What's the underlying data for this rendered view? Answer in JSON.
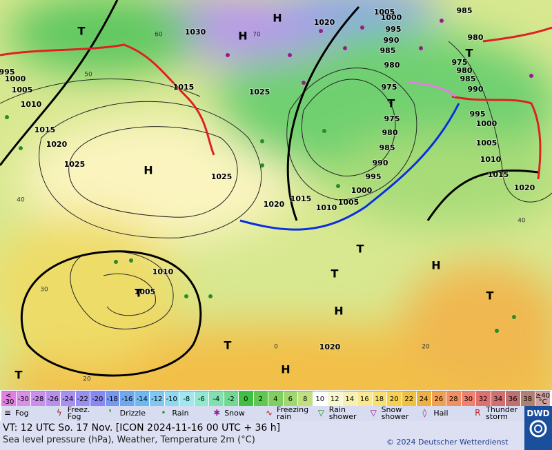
{
  "map": {
    "pressure_labels": [
      "1030",
      "1020",
      "1005",
      "1000",
      "995",
      "990",
      "985",
      "980",
      "975",
      "975",
      "980",
      "985",
      "990",
      "995",
      "1000",
      "1005",
      "1010",
      "1015",
      "1020",
      "1025",
      "1025",
      "1020",
      "1015",
      "1010",
      "1005",
      "1000",
      "995",
      "1015",
      "1025",
      "1010",
      "1005",
      "1020",
      "985",
      "980",
      "975",
      "980",
      "985",
      "990",
      "995",
      "1000",
      "1005",
      "1010",
      "1015",
      "1020"
    ],
    "centers": [
      "H",
      "H",
      "H",
      "H",
      "H",
      "H",
      "T",
      "T",
      "T",
      "T",
      "T",
      "T",
      "T",
      "T",
      "T"
    ],
    "temp_labels": [
      "60",
      "50",
      "70",
      "40",
      "30",
      "20",
      "0",
      "20",
      "40"
    ]
  },
  "color_scale": {
    "labels": [
      "<\n-30",
      "-30",
      "-28",
      "-26",
      "-24",
      "-22",
      "-20",
      "-18",
      "-16",
      "-14",
      "-12",
      "-10",
      "-8",
      "-6",
      "-4",
      "-2",
      "0",
      "2",
      "4",
      "6",
      "8",
      "10",
      "12",
      "14",
      "16",
      "18",
      "20",
      "22",
      "24",
      "26",
      "28",
      "30",
      "32",
      "34",
      "36",
      "38",
      "≥40\n°C"
    ],
    "colors": [
      "#e080e0",
      "#d890e8",
      "#c890ea",
      "#b890ec",
      "#a890f0",
      "#9890f0",
      "#8888f0",
      "#7898f0",
      "#70a8f0",
      "#70b8f0",
      "#80c8f0",
      "#90d8f0",
      "#a0e8f0",
      "#90e8d0",
      "#80e0b0",
      "#70d890",
      "#40c040",
      "#60c850",
      "#80d060",
      "#a0d870",
      "#c0e080",
      "#ffffff",
      "#f8f8d0",
      "#f8f0b0",
      "#f8e890",
      "#f8e070",
      "#f8d050",
      "#f0c040",
      "#f0b040",
      "#f0a050",
      "#f09060",
      "#f08070",
      "#e07070",
      "#d07070",
      "#c07070",
      "#b08070",
      "#d0a0a0"
    ]
  },
  "legend": [
    "Fog",
    "Freez. Fog",
    "Drizzle",
    "Rain",
    "Snow",
    "Freezing rain",
    "Rain shower",
    "Snow shower",
    "Hail",
    "Thunder storm"
  ],
  "footer": {
    "valid_time": "VT: 12 UTC So.  17 Nov. [ICON 2024-11-16  00 UTC + 36 h]",
    "description": "Sea level pressure (hPa), Weather, Temperature 2m (°C)",
    "copyright": "© 2024 Deutscher Wetterdienst",
    "logo": "DWD"
  }
}
